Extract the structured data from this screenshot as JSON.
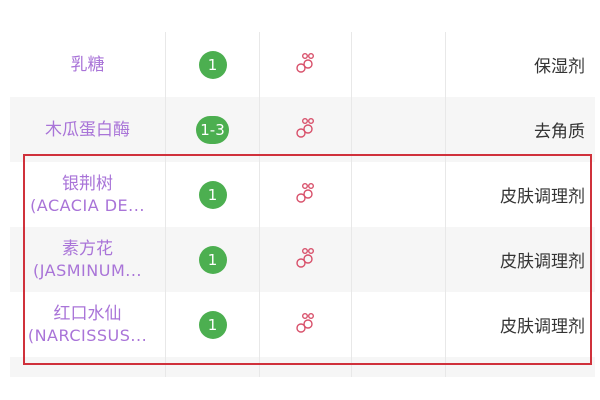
{
  "colors": {
    "name": "#a974d8",
    "badge": "#4caf50",
    "icon": "#d8506a",
    "highlight": "#d0313b"
  },
  "rows": [
    {
      "name": "乳糖",
      "name_en": "",
      "safety": "1",
      "icon": "molecule-icon",
      "function": "保湿剂"
    },
    {
      "name": "木瓜蛋白酶",
      "name_en": "",
      "safety": "1-3",
      "icon": "molecule-icon",
      "function": "去角质"
    },
    {
      "name": "银荆树",
      "name_en": "(ACACIA DE...",
      "safety": "1",
      "icon": "molecule-icon",
      "function": "皮肤调理剂"
    },
    {
      "name": "素方花",
      "name_en": "(JASMINUM...",
      "safety": "1",
      "icon": "molecule-icon",
      "function": "皮肤调理剂"
    },
    {
      "name": "红口水仙",
      "name_en": "(NARCISSUS...",
      "safety": "1",
      "icon": "molecule-icon",
      "function": "皮肤调理剂"
    }
  ]
}
